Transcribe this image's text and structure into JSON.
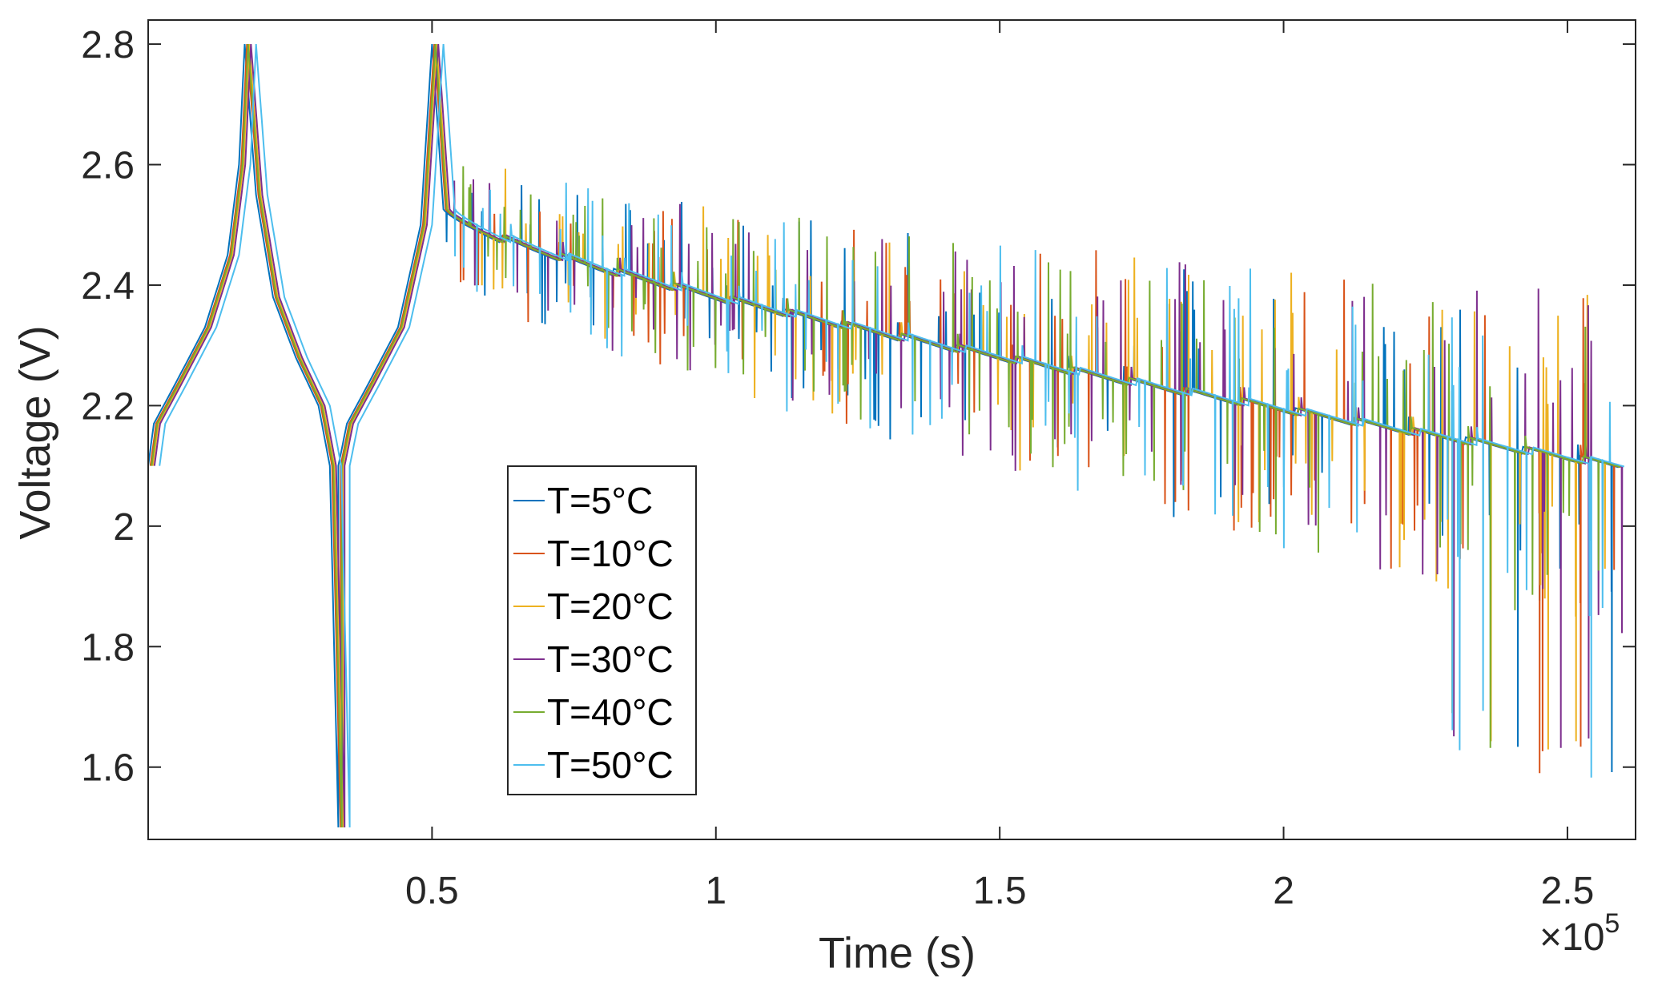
{
  "chart_data": {
    "type": "line",
    "xlabel": "Time (s)",
    "ylabel": "Voltage (V)",
    "x_exponent_label": "×10",
    "x_exponent_power": "5",
    "xlim": [
      0,
      2.62
    ],
    "ylim": [
      1.48,
      2.84
    ],
    "xticks": [
      0.5,
      1,
      1.5,
      2,
      2.5
    ],
    "xtick_labels": [
      "0.5",
      "1",
      "1.5",
      "2",
      "2.5"
    ],
    "yticks": [
      1.6,
      1.8,
      2.0,
      2.2,
      2.4,
      2.6,
      2.8
    ],
    "ytick_labels": [
      "1.6",
      "1.8",
      "2",
      "2.2",
      "2.4",
      "2.6",
      "2.8"
    ],
    "grid": false,
    "legend_position": "middle-left",
    "series": [
      {
        "name": "T=5°C",
        "color": "#0072BD",
        "shift": 0.0,
        "seed": 11
      },
      {
        "name": "T=10°C",
        "color": "#D95319",
        "shift": 0.004,
        "seed": 23
      },
      {
        "name": "T=20°C",
        "color": "#EDB120",
        "shift": 0.008,
        "seed": 37
      },
      {
        "name": "T=30°C",
        "color": "#7E2F8E",
        "shift": 0.011,
        "seed": 51
      },
      {
        "name": "T=40°C",
        "color": "#77AC30",
        "shift": 0.006,
        "seed": 67
      },
      {
        "name": "T=50°C",
        "color": "#4DBEEE",
        "shift": 0.02,
        "seed": 83
      }
    ],
    "profile": {
      "charge_1": {
        "x": [
          0.0,
          0.01,
          0.05,
          0.1,
          0.14,
          0.16,
          0.17
        ],
        "y": [
          2.1,
          2.17,
          2.24,
          2.33,
          2.45,
          2.6,
          2.8
        ]
      },
      "discharge_1": {
        "x": [
          0.17,
          0.19,
          0.22,
          0.26,
          0.3,
          0.32,
          0.335
        ],
        "y": [
          2.8,
          2.55,
          2.38,
          2.28,
          2.2,
          2.1,
          1.5
        ]
      },
      "charge_2": {
        "x": [
          0.335,
          0.35,
          0.39,
          0.44,
          0.48,
          0.5
        ],
        "y": [
          2.1,
          2.17,
          2.24,
          2.33,
          2.5,
          2.8
        ]
      },
      "pulse_region": {
        "x_start": 0.52,
        "x_end": 2.6,
        "step_width": 0.1,
        "y_start": 2.52,
        "y_end": 2.1
      }
    }
  }
}
